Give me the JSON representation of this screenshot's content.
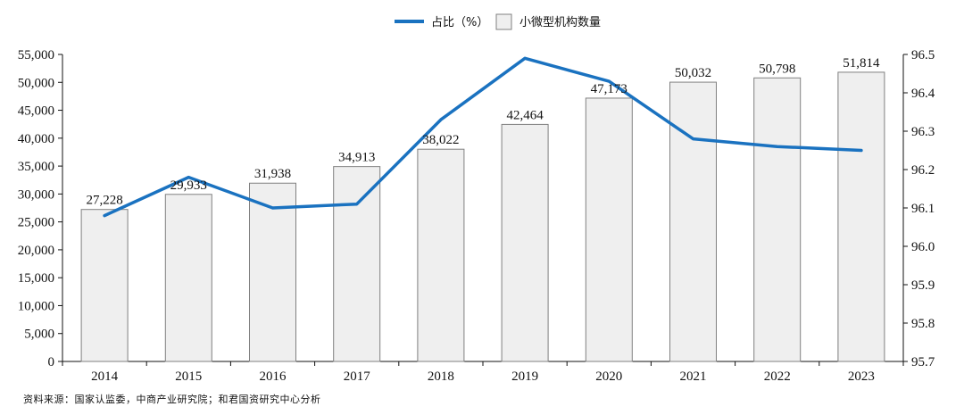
{
  "chart_data": {
    "type": "bar+line",
    "categories": [
      "2014",
      "2015",
      "2016",
      "2017",
      "2018",
      "2019",
      "2020",
      "2021",
      "2022",
      "2023"
    ],
    "bar_series": {
      "name": "小微型机构数量",
      "values": [
        27228,
        29933,
        31938,
        34913,
        38022,
        42464,
        47173,
        50032,
        50798,
        51814
      ],
      "labels": [
        "27,228",
        "29,933",
        "31,938",
        "34,913",
        "38,022",
        "42,464",
        "47,173",
        "50,032",
        "50,798",
        "51,814"
      ],
      "color": "#efefef",
      "border": "#808080"
    },
    "line_series": {
      "name": "占比（%）",
      "values": [
        96.08,
        96.18,
        96.1,
        96.11,
        96.33,
        96.49,
        96.43,
        96.28,
        96.26,
        96.25
      ],
      "color": "#1a72c0"
    },
    "y_left": {
      "min": 0,
      "max": 55000,
      "ticks": [
        "0",
        "5,000",
        "10,000",
        "15,000",
        "20,000",
        "25,000",
        "30,000",
        "35,000",
        "40,000",
        "45,000",
        "50,000",
        "55,000"
      ],
      "tick_values": [
        0,
        5000,
        10000,
        15000,
        20000,
        25000,
        30000,
        35000,
        40000,
        45000,
        50000,
        55000
      ]
    },
    "y_right": {
      "min": 95.7,
      "max": 96.5,
      "ticks": [
        "95.7",
        "95.8",
        "95.9",
        "96.0",
        "96.1",
        "96.2",
        "96.3",
        "96.4",
        "96.5"
      ],
      "tick_values": [
        95.7,
        95.8,
        95.9,
        96.0,
        96.1,
        96.2,
        96.3,
        96.4,
        96.5
      ]
    },
    "legend_position": "top-center",
    "grid": false
  },
  "source_text": "资料来源：国家认监委，中商产业研究院；和君国资研究中心分析"
}
